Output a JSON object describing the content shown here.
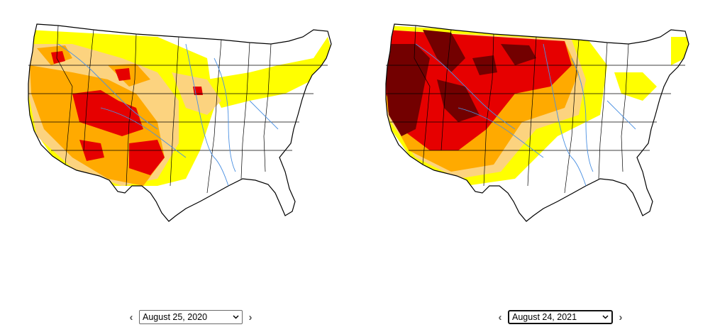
{
  "colors": {
    "background": "#ffffff",
    "none": "#ffffff",
    "d0_abnormally_dry": "#ffff00",
    "d1_moderate": "#fcd37f",
    "d2_severe": "#ffaa00",
    "d3_extreme": "#e60000",
    "d4_exceptional": "#730000",
    "rivers": "#4a90e2",
    "borders": "#000000"
  },
  "maps": [
    {
      "id": "left",
      "date_label": "August 25, 2020",
      "selected_date": "August 25, 2020",
      "prev_icon": "chevron-left-icon",
      "next_icon": "chevron-right-icon"
    },
    {
      "id": "right",
      "date_label": "August 24, 2021",
      "selected_date": "August 24, 2021",
      "prev_icon": "chevron-left-icon",
      "next_icon": "chevron-right-icon"
    }
  ]
}
